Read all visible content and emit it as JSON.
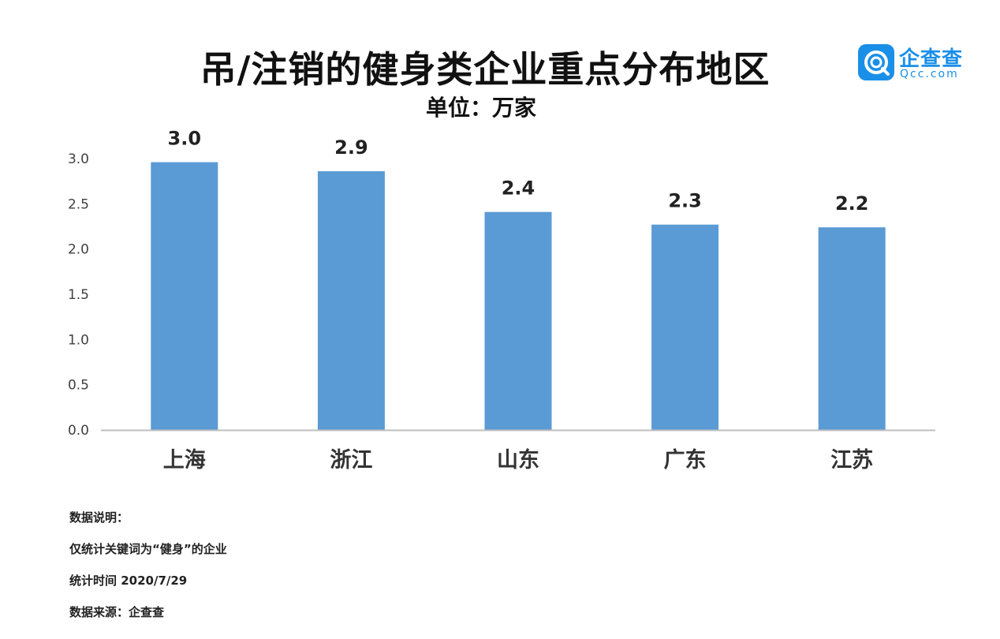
{
  "logo": {
    "name": "企查查",
    "domain": "Qcc.com"
  },
  "chart_data": {
    "type": "bar",
    "title": "吊/注销的健身类企业重点分布地区",
    "subtitle": "单位：万家",
    "categories": [
      "上海",
      "浙江",
      "山东",
      "广东",
      "江苏"
    ],
    "values": [
      2.96,
      2.86,
      2.41,
      2.27,
      2.24
    ],
    "data_labels": [
      "3.0",
      "2.9",
      "2.4",
      "2.3",
      "2.2"
    ],
    "yticks": [
      "0.0",
      "0.5",
      "1.0",
      "1.5",
      "2.0",
      "2.5",
      "3.0"
    ],
    "ylim": [
      0,
      3.0
    ],
    "grid": false,
    "bar_color": "#5b9bd5",
    "axis_color": "#bfbfbf"
  },
  "notes": {
    "heading": "数据说明：",
    "line1": "仅统计关键词为“健身”的企业",
    "line2": "统计时间 2020/7/29",
    "line3": "数据来源：企查查"
  }
}
